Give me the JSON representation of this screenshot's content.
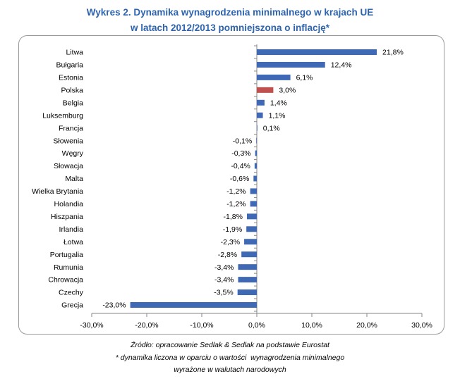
{
  "chart_data": {
    "type": "bar",
    "orientation": "horizontal",
    "title": [
      "Wykres 2. Dynamika wynagrodzenia minimalnego w krajach UE",
      "w latach 2012/2013 pomniejszona o inflację*"
    ],
    "xlabel": "",
    "ylabel": "",
    "categories": [
      "Litwa",
      "Bułgaria",
      "Estonia",
      "Polska",
      "Belgia",
      "Luksemburg",
      "Francja",
      "Słowenia",
      "Węgry",
      "Słowacja",
      "Malta",
      "Wielka Brytania",
      "Holandia",
      "Hiszpania",
      "Irlandia",
      "Łotwa",
      "Portugalia",
      "Rumunia",
      "Chrowacja",
      "Czechy",
      "Grecja"
    ],
    "values": [
      21.8,
      12.4,
      6.1,
      3.0,
      1.4,
      1.1,
      0.1,
      -0.1,
      -0.3,
      -0.4,
      -0.6,
      -1.2,
      -1.2,
      -1.8,
      -1.9,
      -2.3,
      -2.8,
      -3.4,
      -3.4,
      -3.5,
      -23.0
    ],
    "value_labels": [
      "21,8%",
      "12,4%",
      "6,1%",
      "3,0%",
      "1,4%",
      "1,1%",
      "0,1%",
      "-0,1%",
      "-0,3%",
      "-0,4%",
      "-0,6%",
      "-1,2%",
      "-1,2%",
      "-1,8%",
      "-1,9%",
      "-2,3%",
      "-2,8%",
      "-3,4%",
      "-3,4%",
      "-3,5%",
      "-23,0%"
    ],
    "xlim": [
      -30,
      30
    ],
    "x_ticks": [
      -30,
      -20,
      -10,
      0,
      10,
      20,
      30
    ],
    "x_tick_labels": [
      "-30,0%",
      "-20,0%",
      "-10,0%",
      "0,0%",
      "10,0%",
      "20,0%",
      "30,0%"
    ],
    "grid": false,
    "legend": "none",
    "highlight_index": 3,
    "colors": {
      "bar": "#3F69B5",
      "highlight": "#C0504D",
      "title": "#2E63AD",
      "frame": "#9A9A9A"
    }
  },
  "footnotes": [
    "Źródło: opracowanie Sedlak & Sedlak na podstawie Eurostat",
    "* dynamika liczona w oparciu o wartości  wynagrodzenia minimalnego",
    "wyrażone w walutach narodowych"
  ]
}
